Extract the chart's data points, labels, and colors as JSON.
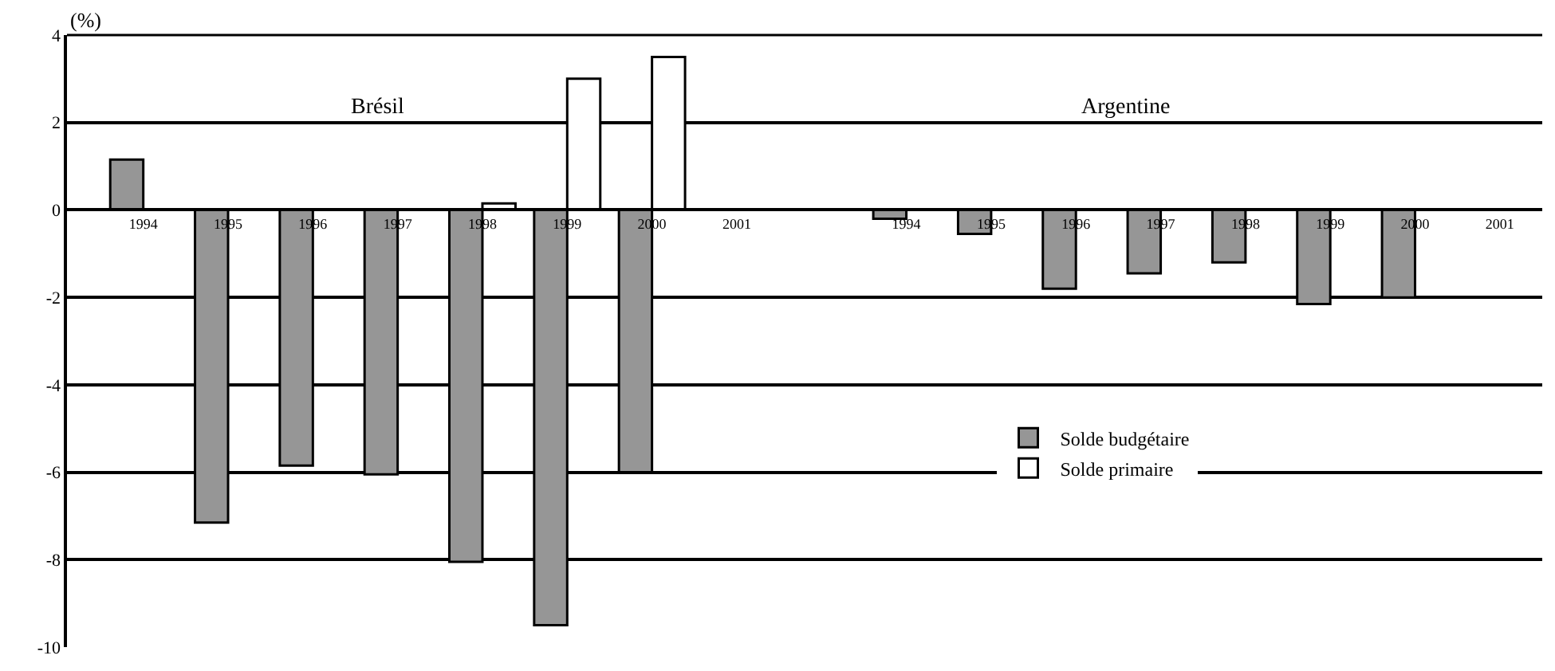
{
  "chart_data": {
    "type": "bar",
    "ylabel": "(%)",
    "categories": [
      "1994",
      "1995",
      "1996",
      "1997",
      "1998",
      "1999",
      "2000",
      "2001",
      null,
      "1994",
      "1995",
      "1996",
      "1997",
      "1998",
      "1999",
      "2000",
      "2001"
    ],
    "series": [
      {
        "name": "Solde budgétaire",
        "color": "#969696",
        "values": [
          1.15,
          -7.15,
          -5.85,
          -6.05,
          -8.05,
          -9.5,
          -6.0,
          null,
          null,
          -0.2,
          -0.55,
          -1.8,
          -1.45,
          -1.2,
          -2.15,
          -2.0,
          null
        ]
      },
      {
        "name": "Solde primaire",
        "color": "#ffffff",
        "values": [
          null,
          null,
          null,
          null,
          0.15,
          3.0,
          3.5,
          null,
          null,
          null,
          null,
          null,
          null,
          null,
          null,
          null,
          null
        ]
      }
    ],
    "annotations": [
      "Brésil",
      "Argentine"
    ],
    "ylim": [
      -10,
      4
    ],
    "yticks": [
      4,
      2,
      0,
      -2,
      -4,
      -6,
      -8,
      -10
    ],
    "grid": "y",
    "legend": "bottom right"
  }
}
